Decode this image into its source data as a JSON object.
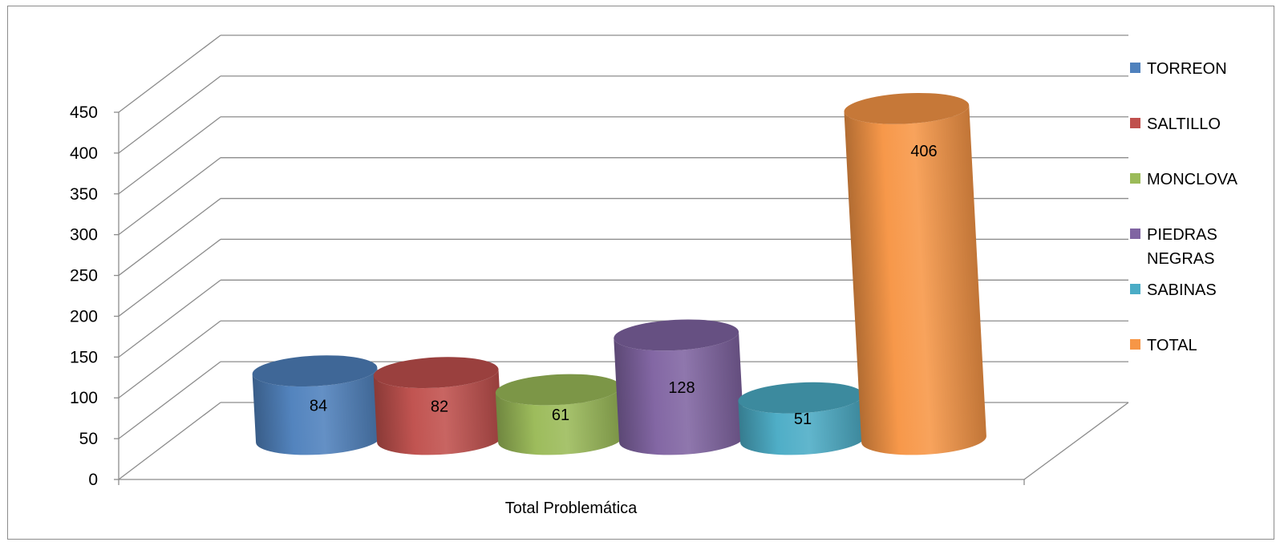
{
  "chart_data": {
    "type": "bar",
    "categories": [
      "Total Problemática"
    ],
    "series": [
      {
        "name": "TORREON",
        "values": [
          84
        ],
        "color": "#4f81bd"
      },
      {
        "name": "SALTILLO",
        "values": [
          82
        ],
        "color": "#c0504d"
      },
      {
        "name": "MONCLOVA",
        "values": [
          61
        ],
        "color": "#9bbb59"
      },
      {
        "name": "PIEDRAS NEGRAS",
        "values": [
          128
        ],
        "color": "#8064a2"
      },
      {
        "name": "SABINAS",
        "values": [
          51
        ],
        "color": "#4bacc6"
      },
      {
        "name": "TOTAL",
        "values": [
          406
        ],
        "color": "#f79646"
      }
    ],
    "yticks": [
      "0",
      "50",
      "100",
      "150",
      "200",
      "250",
      "300",
      "350",
      "400",
      "450"
    ],
    "ylim": [
      0,
      450
    ],
    "grid": true,
    "legend": "right",
    "style": "3d-cylinder"
  }
}
